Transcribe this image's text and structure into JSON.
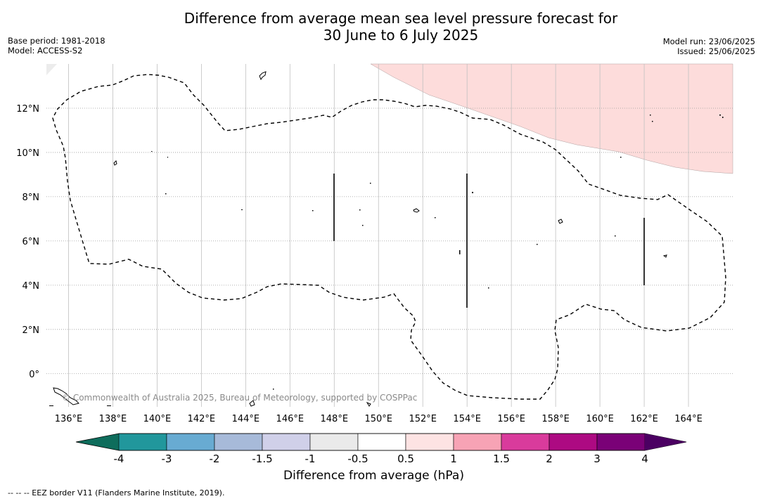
{
  "title_line1": "Difference from average mean sea level pressure forecast for",
  "title_line2": "30 June to 6 July 2025",
  "meta_left": {
    "base_period": "Base period: 1981-2018",
    "model": "Model: ACCESS-S2"
  },
  "meta_right": {
    "model_run": "Model run: 23/06/2025",
    "issued": "Issued: 25/06/2025"
  },
  "map": {
    "lon_range": [
      135,
      166
    ],
    "lat_range": [
      -1.5,
      14
    ],
    "lon_ticks": [
      136,
      138,
      140,
      142,
      144,
      146,
      148,
      150,
      152,
      154,
      156,
      158,
      160,
      162,
      164
    ],
    "lon_tick_labels": [
      "136°E",
      "138°E",
      "140°E",
      "142°E",
      "144°E",
      "146°E",
      "148°E",
      "150°E",
      "152°E",
      "154°E",
      "156°E",
      "158°E",
      "160°E",
      "162°E",
      "164°E"
    ],
    "lat_ticks": [
      0,
      2,
      4,
      6,
      8,
      10,
      12
    ],
    "lat_tick_labels": [
      "0°",
      "2°N",
      "4°N",
      "6°N",
      "8°N",
      "10°N",
      "12°N"
    ],
    "gridlines": true,
    "copyright": "© Commonwealth of Australia 2025, Bureau of Meteorology, supported by COSPPac",
    "anomaly_region": {
      "category": "0.5 to 1",
      "color": "#fddcdb",
      "location": "top-right"
    }
  },
  "colorbar": {
    "title": "Difference from average (hPa)",
    "tick_labels": [
      "-4",
      "-3",
      "-2",
      "-1.5",
      "-1",
      "-0.5",
      "0.5",
      "1",
      "1.5",
      "2",
      "3",
      "4"
    ],
    "low_extend_color": "#0e6d5c",
    "colors": [
      "#21979c",
      "#68abd2",
      "#a7bad9",
      "#d0d0e9",
      "#eaeaea",
      "#ffffff",
      "#fde3e3",
      "#f7a3b5",
      "#d93b9c",
      "#ad0a82",
      "#7a0177"
    ],
    "high_extend_color": "#4b0062"
  },
  "footer": "--  --  -- EEZ border V11 (Flanders Marine Institute, 2019)."
}
